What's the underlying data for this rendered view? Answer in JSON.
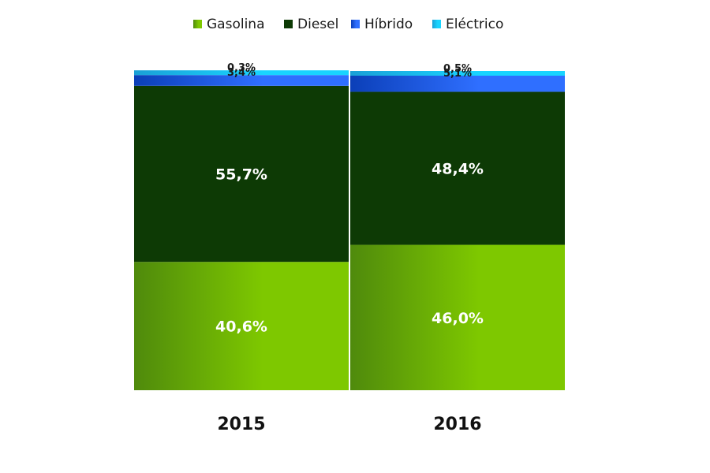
{
  "chart_data": {
    "type": "bar",
    "stacked": true,
    "normalized_percent": true,
    "categories": [
      "2015",
      "2016"
    ],
    "series": [
      {
        "name": "Gasolina",
        "values": [
          40.6,
          46.0
        ],
        "labels": [
          "40,6%",
          "46,0%"
        ],
        "color": "#7ec800",
        "color_dark": "#4f8a0c"
      },
      {
        "name": "Diesel",
        "values": [
          55.7,
          48.4
        ],
        "labels": [
          "55,7%",
          "48,4%"
        ],
        "color": "#0d3a05",
        "color_dark": "#0d3a05"
      },
      {
        "name": "Híbrido",
        "values": [
          3.4,
          5.1
        ],
        "labels": [
          "3,4%",
          "5,1%"
        ],
        "color": "#2f6fff",
        "color_dark": "#0b3fb8"
      },
      {
        "name": "Eléctrico",
        "values": [
          0.3,
          0.5
        ],
        "labels": [
          "0,3%",
          "0,5%"
        ],
        "color": "#19d4ff",
        "color_dark": "#1aa0d6"
      }
    ],
    "ylim": [
      0,
      100
    ],
    "legend": "top",
    "grid": false,
    "title": "",
    "xlabel": "",
    "ylabel": ""
  }
}
